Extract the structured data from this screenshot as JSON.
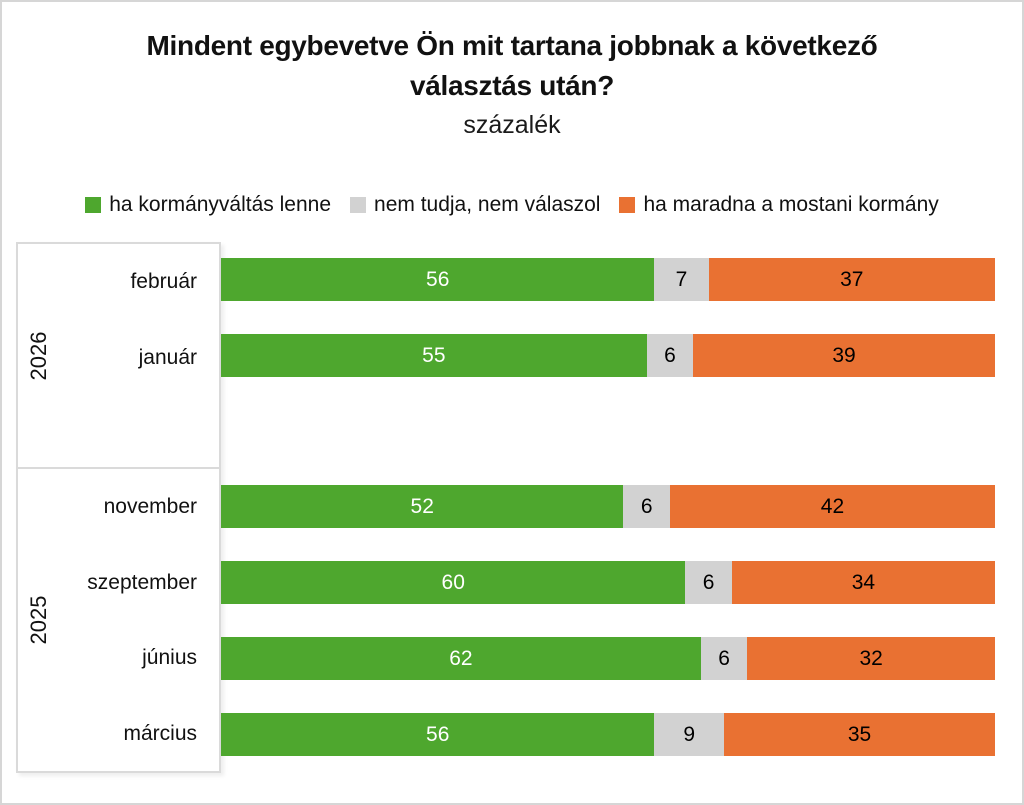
{
  "page": {
    "background": "#FFFFFF",
    "border_color": "#D6D6D6"
  },
  "title": {
    "lines": [
      "Mindent egybevetve Ön mit tartana jobbnak a következő",
      "választás után?"
    ],
    "full_text": "Mindent egybevetve Ön mit tartana jobbnak a következő választás után?",
    "subtitle": "százalék"
  },
  "legend": {
    "items": [
      {
        "label": "ha kormányváltás lenne",
        "color": "#4EA72E"
      },
      {
        "label": "nem tudja, nem válaszol",
        "color": "#D2D2D2"
      },
      {
        "label": "ha maradna a mostani kormány",
        "color": "#E97132"
      }
    ]
  },
  "chart_data": {
    "type": "bar",
    "orientation": "horizontal",
    "stacked": true,
    "unit": "percent",
    "x_range": [
      0,
      100
    ],
    "grid": false,
    "legend_position": "top",
    "series_names": [
      "ha kormányváltás lenne",
      "nem tudja, nem válaszol",
      "ha maradna a mostani kormány"
    ],
    "colors": [
      "#4EA72E",
      "#D2D2D2",
      "#E97132"
    ],
    "value_label_colors": [
      "#FFFFFF",
      "#000000",
      "#000000"
    ],
    "groups": [
      {
        "year": "2026",
        "rows": [
          {
            "month": "február",
            "values": [
              56,
              7,
              37
            ]
          },
          {
            "month": "január",
            "values": [
              55,
              6,
              39
            ]
          }
        ]
      },
      {
        "year": "2025",
        "rows": [
          {
            "month": "november",
            "values": [
              52,
              6,
              42
            ]
          },
          {
            "month": "szeptember",
            "values": [
              60,
              6,
              34
            ]
          },
          {
            "month": "június",
            "values": [
              62,
              6,
              32
            ]
          },
          {
            "month": "március",
            "values": [
              56,
              9,
              35
            ]
          }
        ]
      }
    ]
  }
}
